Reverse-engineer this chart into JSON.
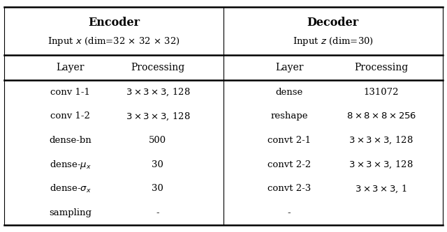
{
  "title_encoder": "Encoder",
  "title_decoder": "Decoder",
  "subtitle_encoder": "Input $x$ (dim=32 $\\times$ 32 $\\times$ 32)",
  "subtitle_decoder": "Input $z$ (dim=30)",
  "col_headers": [
    "Layer",
    "Processing",
    "Layer",
    "Processing"
  ],
  "encoder_rows": [
    [
      "conv 1-1",
      "$3 \\times 3 \\times 3$, 128"
    ],
    [
      "conv 1-2",
      "$3 \\times 3 \\times 3$, 128"
    ],
    [
      "dense-bn",
      "500"
    ],
    [
      "dense-$\\mu_x$",
      "30"
    ],
    [
      "dense-$\\sigma_x$",
      "30"
    ],
    [
      "sampling",
      "-"
    ]
  ],
  "decoder_rows": [
    [
      "dense",
      "131072"
    ],
    [
      "reshape",
      "$8 \\times 8 \\times 8 \\times 256$"
    ],
    [
      "convt 2-1",
      "$3 \\times 3 \\times 3$, 128"
    ],
    [
      "convt 2-2",
      "$3 \\times 3 \\times 3$, 128"
    ],
    [
      "convt 2-3",
      "$3 \\times 3 \\times 3$, 1"
    ],
    [
      "-",
      ""
    ]
  ],
  "bg_color": "#ffffff",
  "text_color": "#000000",
  "line_color": "#000000",
  "figsize": [
    6.4,
    3.33
  ],
  "dpi": 100
}
